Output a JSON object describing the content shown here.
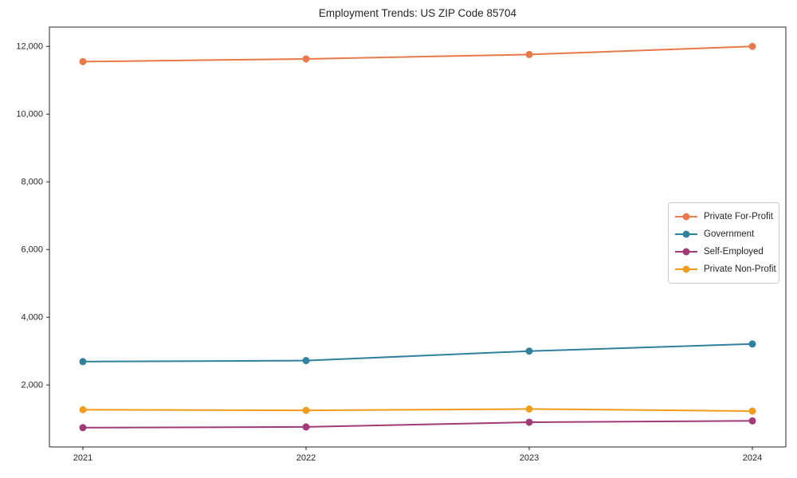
{
  "chart_data": {
    "type": "line",
    "title": "Employment Trends: US ZIP Code 85704",
    "xlabel": "",
    "ylabel": "",
    "x": [
      2021,
      2022,
      2023,
      2024
    ],
    "x_tick_labels": [
      "2021",
      "2022",
      "2023",
      "2024"
    ],
    "y_ticks": [
      2000,
      4000,
      6000,
      8000,
      10000,
      12000
    ],
    "y_tick_labels": [
      "2,000",
      "4,000",
      "6,000",
      "8,000",
      "10,000",
      "12,000"
    ],
    "xlim": [
      2020.85,
      2024.15
    ],
    "ylim": [
      170,
      12570
    ],
    "grid": false,
    "legend_position": "center-right",
    "marker": "circle",
    "series": [
      {
        "name": "Private For-Profit",
        "color": "#e8794a",
        "values": [
          11550,
          11630,
          11760,
          12000
        ]
      },
      {
        "name": "Government",
        "color": "#31819e",
        "values": [
          2690,
          2720,
          3000,
          3210
        ]
      },
      {
        "name": "Self-Employed",
        "color": "#a23a78",
        "values": [
          740,
          760,
          900,
          940
        ]
      },
      {
        "name": "Private Non-Profit",
        "color": "#f09c1c",
        "values": [
          1270,
          1250,
          1290,
          1230
        ]
      }
    ],
    "axis_color": "#262626"
  }
}
